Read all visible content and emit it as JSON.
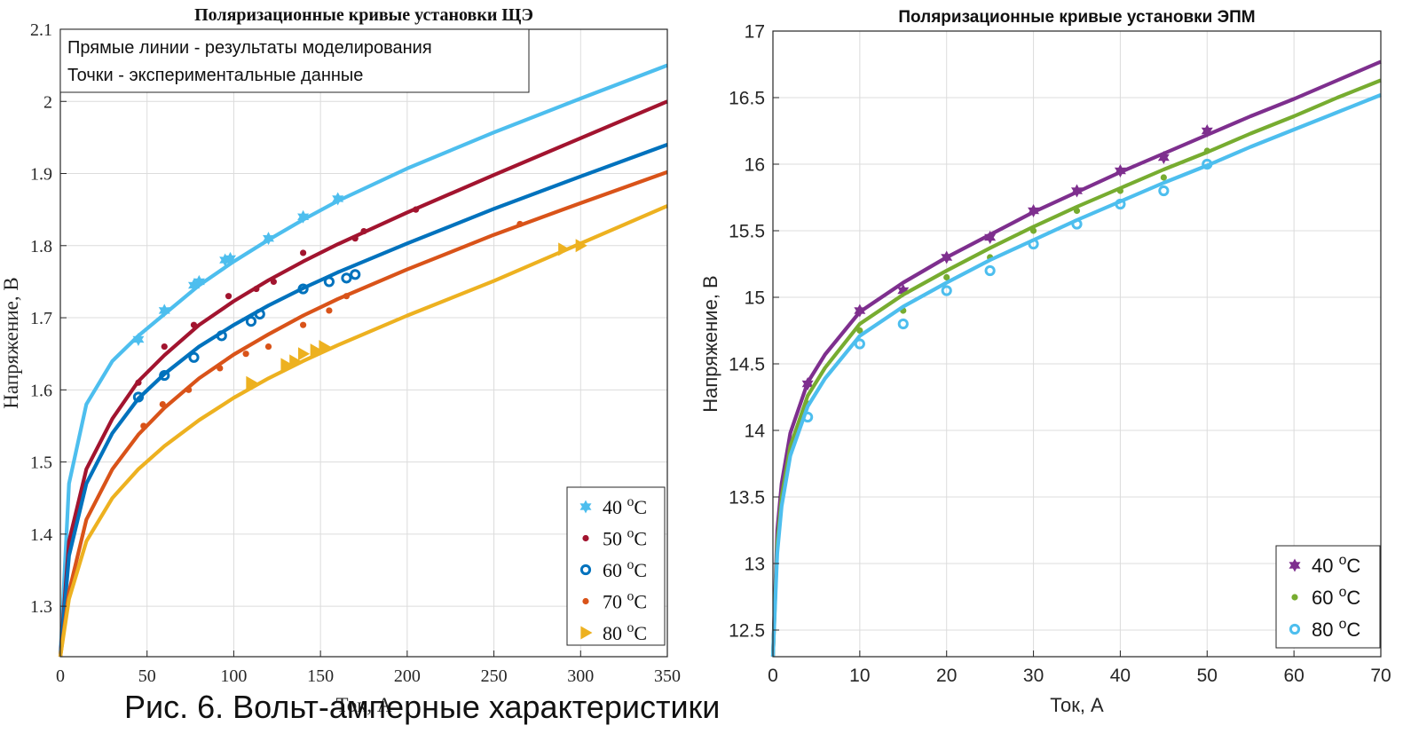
{
  "caption": "Рис. 6. Вольт-амперные характеристики",
  "chart_data": [
    {
      "type": "line",
      "title": "Поляризационные кривые установки ЩЭ",
      "xlabel": "Ток, А",
      "ylabel": "Напряжение, В",
      "xlim": [
        0,
        350
      ],
      "ylim": [
        1.23,
        2.1
      ],
      "xticks": [
        0,
        50,
        100,
        150,
        200,
        250,
        300,
        350
      ],
      "yticks": [
        1.3,
        1.4,
        1.5,
        1.6,
        1.7,
        1.8,
        1.9,
        2,
        2.1
      ],
      "grid": true,
      "legend_position": "bottom-right",
      "annotation": [
        "Прямые линии - результаты моделирования",
        "Точки - экспериментальные данные"
      ],
      "series": [
        {
          "name": "40 °C",
          "label": "40",
          "color": "#4DBEEE",
          "marker": "hexagram",
          "line_x": [
            0,
            5,
            15,
            30,
            45,
            60,
            80,
            100,
            120,
            140,
            160,
            200,
            250,
            300,
            350
          ],
          "line_y": [
            1.23,
            1.47,
            1.58,
            1.64,
            1.675,
            1.705,
            1.745,
            1.778,
            1.808,
            1.836,
            1.862,
            1.907,
            1.957,
            2.004,
            2.05
          ],
          "points_x": [
            45,
            60,
            77,
            80,
            95,
            98,
            120,
            140,
            160
          ],
          "points_y": [
            1.67,
            1.71,
            1.745,
            1.75,
            1.78,
            1.782,
            1.81,
            1.84,
            1.865
          ]
        },
        {
          "name": "50 °C",
          "label": "50",
          "color": "#A2142F",
          "marker": "dot",
          "line_x": [
            0,
            5,
            15,
            30,
            45,
            60,
            80,
            100,
            120,
            140,
            160,
            200,
            250,
            300,
            350
          ],
          "line_y": [
            1.23,
            1.39,
            1.49,
            1.56,
            1.612,
            1.648,
            1.69,
            1.723,
            1.752,
            1.778,
            1.802,
            1.846,
            1.898,
            1.949,
            2.0
          ],
          "points_x": [
            45,
            60,
            77,
            97,
            113,
            123,
            140,
            170,
            175,
            205
          ],
          "points_y": [
            1.61,
            1.66,
            1.69,
            1.73,
            1.74,
            1.75,
            1.79,
            1.81,
            1.82,
            1.85
          ]
        },
        {
          "name": "60 °C",
          "label": "60",
          "color": "#0072BD",
          "marker": "circle",
          "line_x": [
            0,
            5,
            15,
            30,
            45,
            60,
            80,
            100,
            120,
            140,
            160,
            200,
            250,
            300,
            350
          ],
          "line_y": [
            1.23,
            1.37,
            1.47,
            1.54,
            1.588,
            1.622,
            1.66,
            1.69,
            1.717,
            1.741,
            1.763,
            1.803,
            1.851,
            1.896,
            1.94
          ],
          "points_x": [
            45,
            60,
            77,
            93,
            110,
            115,
            140,
            155,
            165,
            170
          ],
          "points_y": [
            1.59,
            1.62,
            1.645,
            1.675,
            1.695,
            1.705,
            1.74,
            1.75,
            1.755,
            1.76
          ]
        },
        {
          "name": "70 °C",
          "label": "70",
          "color": "#D95319",
          "marker": "dot",
          "line_x": [
            0,
            5,
            15,
            30,
            45,
            60,
            80,
            100,
            120,
            140,
            160,
            200,
            250,
            300,
            350
          ],
          "line_y": [
            1.23,
            1.32,
            1.42,
            1.49,
            1.538,
            1.575,
            1.616,
            1.649,
            1.677,
            1.703,
            1.726,
            1.767,
            1.815,
            1.859,
            1.902
          ],
          "points_x": [
            48,
            59,
            74,
            92,
            107,
            120,
            140,
            155,
            165,
            265
          ],
          "points_y": [
            1.55,
            1.58,
            1.6,
            1.63,
            1.65,
            1.66,
            1.69,
            1.71,
            1.73,
            1.83
          ]
        },
        {
          "name": "80 °C",
          "label": "80",
          "color": "#EDB120",
          "marker": "triangle",
          "line_x": [
            0,
            5,
            15,
            30,
            45,
            60,
            80,
            100,
            120,
            140,
            160,
            200,
            250,
            300,
            350
          ],
          "line_y": [
            1.23,
            1.31,
            1.39,
            1.45,
            1.49,
            1.522,
            1.558,
            1.589,
            1.616,
            1.64,
            1.662,
            1.703,
            1.751,
            1.803,
            1.855
          ],
          "points_x": [
            110,
            130,
            135,
            140,
            147,
            152,
            290,
            300
          ],
          "points_y": [
            1.61,
            1.635,
            1.64,
            1.65,
            1.655,
            1.66,
            1.795,
            1.8
          ]
        }
      ]
    },
    {
      "type": "line",
      "title": "Поляризационные кривые установки ЭПМ",
      "xlabel": "Ток, А",
      "ylabel": "Напряжение, В",
      "xlim": [
        0,
        70
      ],
      "ylim": [
        12.3,
        17
      ],
      "xticks": [
        0,
        10,
        20,
        30,
        40,
        50,
        60,
        70
      ],
      "yticks": [
        12.5,
        13,
        13.5,
        14,
        14.5,
        15,
        15.5,
        16,
        16.5,
        17
      ],
      "grid": true,
      "legend_position": "bottom-right",
      "series": [
        {
          "name": "40 °C",
          "label": "40",
          "color": "#7E2F8E",
          "marker": "hexagram",
          "line_x": [
            0,
            0.5,
            1,
            2,
            4,
            6,
            10,
            15,
            20,
            25,
            30,
            35,
            40,
            45,
            50,
            55,
            60,
            65,
            70
          ],
          "line_y": [
            12.3,
            13.25,
            13.6,
            13.98,
            14.36,
            14.57,
            14.89,
            15.11,
            15.3,
            15.47,
            15.64,
            15.79,
            15.94,
            16.08,
            16.22,
            16.36,
            16.49,
            16.63,
            16.77
          ],
          "points_x": [
            4,
            10,
            15,
            20,
            25,
            30,
            35,
            40,
            45,
            50
          ],
          "points_y": [
            14.35,
            14.9,
            15.05,
            15.3,
            15.45,
            15.65,
            15.8,
            15.95,
            16.05,
            16.25
          ]
        },
        {
          "name": "60 °C",
          "label": "60",
          "color": "#77AC30",
          "marker": "dot",
          "line_x": [
            0,
            0.5,
            1,
            2,
            4,
            6,
            10,
            15,
            20,
            25,
            30,
            35,
            40,
            45,
            50,
            55,
            60,
            65,
            70
          ],
          "line_y": [
            12.3,
            13.15,
            13.5,
            13.88,
            14.26,
            14.47,
            14.8,
            15.02,
            15.2,
            15.37,
            15.53,
            15.68,
            15.82,
            15.96,
            16.09,
            16.23,
            16.36,
            16.5,
            16.63
          ],
          "points_x": [
            4,
            10,
            15,
            20,
            25,
            30,
            35,
            40,
            45,
            50
          ],
          "points_y": [
            14.2,
            14.75,
            14.9,
            15.15,
            15.3,
            15.5,
            15.65,
            15.8,
            15.9,
            16.1
          ]
        },
        {
          "name": "80 °C",
          "label": "80",
          "color": "#4DBEEE",
          "marker": "circle",
          "line_x": [
            0,
            0.5,
            1,
            2,
            4,
            6,
            10,
            15,
            20,
            25,
            30,
            35,
            40,
            45,
            50,
            55,
            60,
            65,
            70
          ],
          "line_y": [
            12.3,
            13.08,
            13.43,
            13.81,
            14.18,
            14.39,
            14.71,
            14.93,
            15.11,
            15.28,
            15.43,
            15.58,
            15.72,
            15.86,
            15.99,
            16.13,
            16.26,
            16.39,
            16.52
          ],
          "points_x": [
            4,
            10,
            15,
            20,
            25,
            30,
            35,
            40,
            45,
            50
          ],
          "points_y": [
            14.1,
            14.65,
            14.8,
            15.05,
            15.2,
            15.4,
            15.55,
            15.7,
            15.8,
            16.0
          ]
        }
      ]
    }
  ]
}
